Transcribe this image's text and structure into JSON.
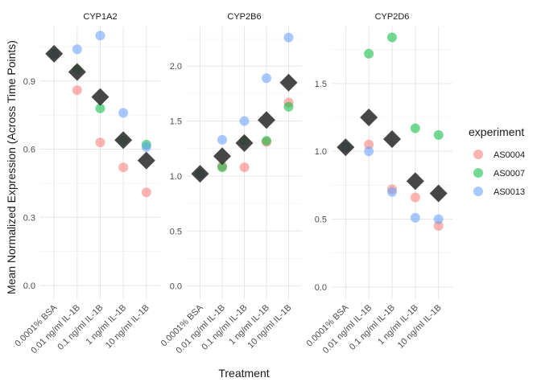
{
  "chart_data": {
    "type": "scatter",
    "title": "",
    "xlabel": "Treatment",
    "ylabel": "Mean Normalized Expression (Across Time Points)",
    "categories": [
      "0.0001% BSA",
      "0.01 ng/ml IL-1B",
      "0.1 ng/ml IL-1B",
      "1 ng/ml IL-1B",
      "10 ng/ml IL-1B"
    ],
    "legend": {
      "title": "experiment",
      "placement": "right",
      "entries": [
        {
          "name": "AS0004",
          "color": "#F8766D"
        },
        {
          "name": "AS0007",
          "color": "#00BA38"
        },
        {
          "name": "AS0013",
          "color": "#619CFF"
        }
      ]
    },
    "mean_marker_color": "#333333",
    "grid": true,
    "facets": [
      {
        "title": "CYP1A2",
        "ylim": [
          -0.06,
          1.14
        ],
        "yticks": [
          0.0,
          0.3,
          0.6,
          0.9
        ],
        "ytick_labels": [
          "0.0",
          "0.3",
          "0.6",
          "0.9"
        ],
        "series": [
          {
            "name": "AS0004",
            "values": [
              1.02,
              0.86,
              0.63,
              0.52,
              0.41
            ]
          },
          {
            "name": "AS0007",
            "values": [
              1.02,
              0.95,
              0.78,
              0.64,
              0.62
            ]
          },
          {
            "name": "AS0013",
            "values": [
              1.02,
              1.04,
              1.1,
              0.76,
              0.61
            ]
          }
        ],
        "mean": [
          1.02,
          0.94,
          0.83,
          0.64,
          0.55
        ]
      },
      {
        "title": "CYP2B6",
        "ylim": [
          -0.12,
          2.36
        ],
        "yticks": [
          0.0,
          0.5,
          1.0,
          1.5,
          2.0
        ],
        "ytick_labels": [
          "0.0",
          "0.5",
          "1.0",
          "1.5",
          "2.0"
        ],
        "series": [
          {
            "name": "AS0004",
            "values": [
              1.02,
              1.09,
              1.08,
              1.31,
              1.67
            ]
          },
          {
            "name": "AS0007",
            "values": [
              1.02,
              1.08,
              1.32,
              1.32,
              1.63
            ]
          },
          {
            "name": "AS0013",
            "values": [
              1.02,
              1.33,
              1.5,
              1.89,
              2.26
            ]
          }
        ],
        "mean": [
          1.02,
          1.18,
          1.3,
          1.51,
          1.85
        ]
      },
      {
        "title": "CYP2D6",
        "ylim": [
          -0.09,
          1.92
        ],
        "yticks": [
          0.0,
          0.5,
          1.0,
          1.5
        ],
        "ytick_labels": [
          "0.0",
          "0.5",
          "1.0",
          "1.5"
        ],
        "series": [
          {
            "name": "AS0004",
            "values": [
              1.03,
              1.05,
              0.72,
              0.66,
              0.45
            ]
          },
          {
            "name": "AS0007",
            "values": [
              1.03,
              1.72,
              1.84,
              1.17,
              1.12
            ]
          },
          {
            "name": "AS0013",
            "values": [
              1.03,
              1.0,
              0.7,
              0.51,
              0.5
            ]
          }
        ],
        "mean": [
          1.03,
          1.25,
          1.09,
          0.78,
          0.69
        ]
      }
    ]
  }
}
